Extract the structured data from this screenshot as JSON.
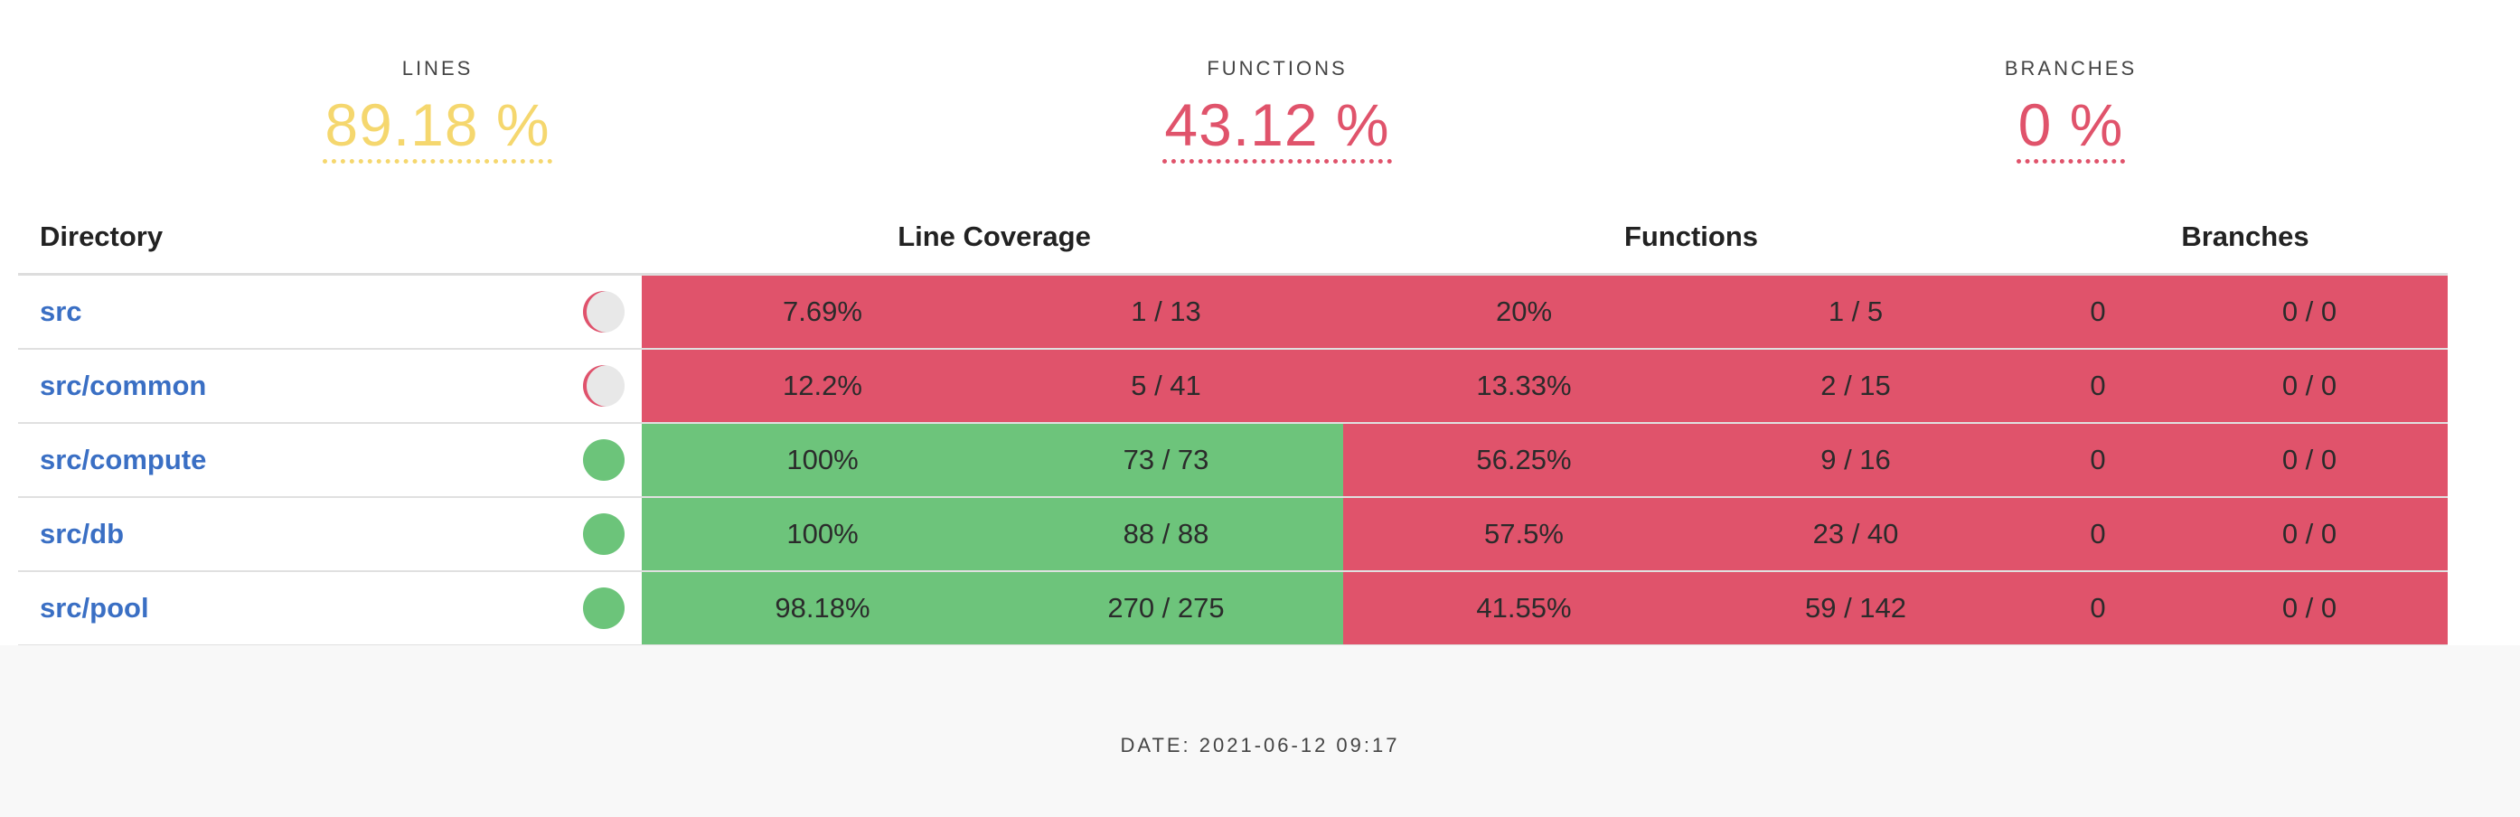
{
  "summary": {
    "lines": {
      "label": "LINES",
      "value": "89.18 %",
      "color": "#f5d76e"
    },
    "functions": {
      "label": "FUNCTIONS",
      "value": "43.12 %",
      "color": "#e0536b"
    },
    "branches": {
      "label": "BRANCHES",
      "value": "0 %",
      "color": "#e0536b"
    }
  },
  "table": {
    "headers": {
      "directory": "Directory",
      "line_coverage": "Line Coverage",
      "functions": "Functions",
      "branches": "Branches"
    },
    "rows": [
      {
        "dir": "src",
        "line_pct": "7.69%",
        "line_count": "1 / 13",
        "func_pct": "20%",
        "func_count": "1 / 5",
        "branch_pct": "0",
        "branch_count": "0 / 0",
        "line_status": "red",
        "pie": "grey"
      },
      {
        "dir": "src/common",
        "line_pct": "12.2%",
        "line_count": "5 / 41",
        "func_pct": "13.33%",
        "func_count": "2 / 15",
        "branch_pct": "0",
        "branch_count": "0 / 0",
        "line_status": "red",
        "pie": "grey"
      },
      {
        "dir": "src/compute",
        "line_pct": "100%",
        "line_count": "73 / 73",
        "func_pct": "56.25%",
        "func_count": "9 / 16",
        "branch_pct": "0",
        "branch_count": "0 / 0",
        "line_status": "green",
        "pie": "green"
      },
      {
        "dir": "src/db",
        "line_pct": "100%",
        "line_count": "88 / 88",
        "func_pct": "57.5%",
        "func_count": "23 / 40",
        "branch_pct": "0",
        "branch_count": "0 / 0",
        "line_status": "green",
        "pie": "green"
      },
      {
        "dir": "src/pool",
        "line_pct": "98.18%",
        "line_count": "270 / 275",
        "func_pct": "41.55%",
        "func_count": "59 / 142",
        "branch_pct": "0",
        "branch_count": "0 / 0",
        "line_status": "green",
        "pie": "green"
      }
    ]
  },
  "footer": {
    "date": "DATE: 2021-06-12 09:17"
  },
  "colors": {
    "red": "#e0536b",
    "green": "#6dc47b",
    "link": "#3a6fc4"
  }
}
